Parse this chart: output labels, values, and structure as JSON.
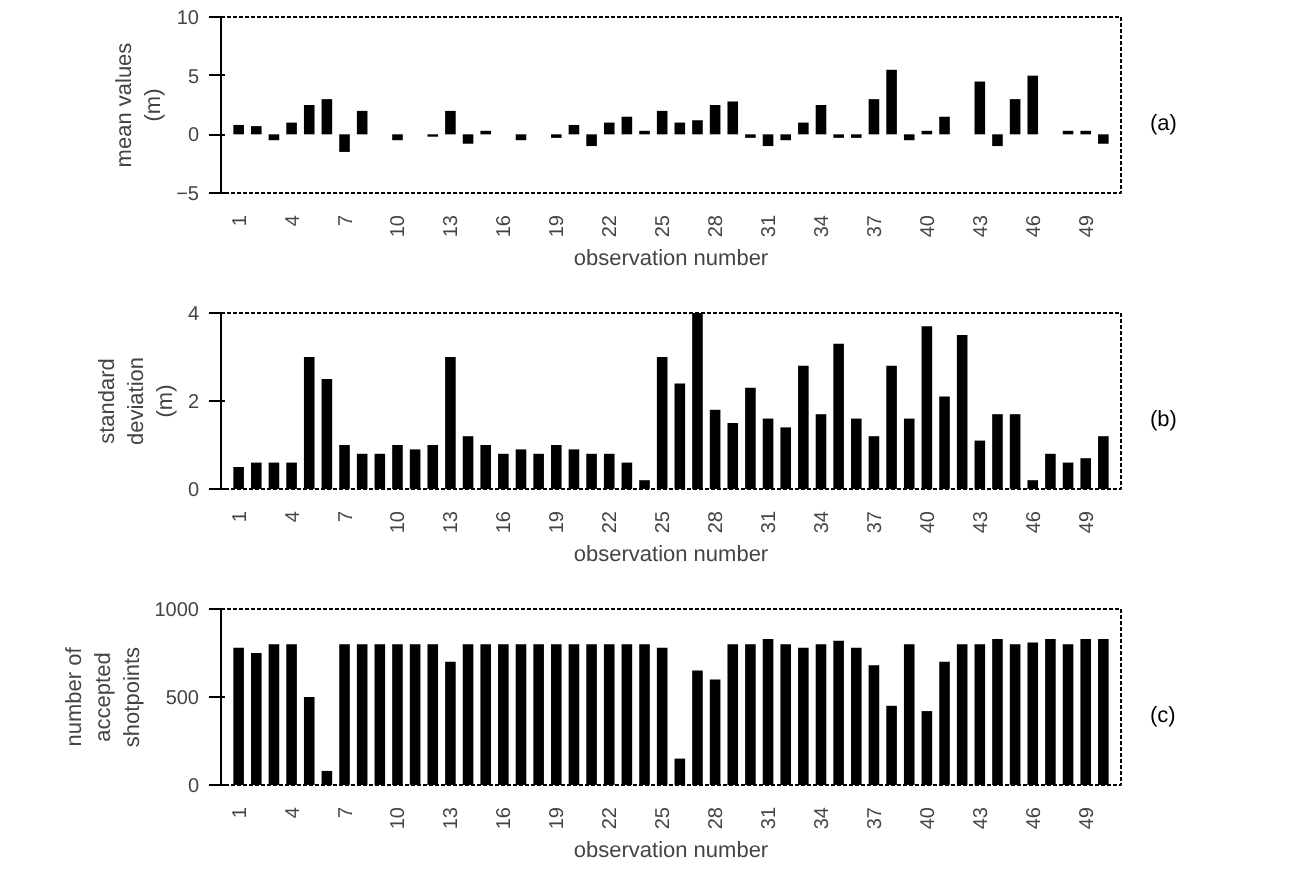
{
  "chart_data": [
    {
      "type": "bar",
      "xlabel": "observation number",
      "ylabel": "mean values\n(m)",
      "annotations": [
        "(a)"
      ],
      "x": [
        1,
        2,
        3,
        4,
        5,
        6,
        7,
        8,
        9,
        10,
        11,
        12,
        13,
        14,
        15,
        16,
        17,
        18,
        19,
        20,
        21,
        22,
        23,
        24,
        25,
        26,
        27,
        28,
        29,
        30,
        31,
        32,
        33,
        34,
        35,
        36,
        37,
        38,
        39,
        40,
        41,
        42,
        43,
        44,
        45,
        46,
        47,
        48,
        49,
        50
      ],
      "series": [
        {
          "color": "#000000",
          "values": [
            0.8,
            0.7,
            -0.5,
            1,
            2.5,
            3,
            -1.5,
            2,
            0,
            -0.5,
            0,
            -0.2,
            2,
            -0.8,
            0.3,
            0,
            -0.5,
            0,
            -0.3,
            0.8,
            -1,
            1,
            1.5,
            0.3,
            2,
            1,
            1.2,
            2.5,
            2.8,
            -0.3,
            -1,
            -0.5,
            1,
            2.5,
            -0.3,
            -0.3,
            3,
            5.5,
            -0.5,
            0.3,
            1.5,
            0,
            4.5,
            -1,
            3,
            5,
            null,
            0.3,
            0.3,
            -0.8
          ]
        }
      ],
      "xlim": [
        0,
        51
      ],
      "xticks": [
        1,
        4,
        7,
        10,
        13,
        16,
        19,
        22,
        25,
        28,
        31,
        34,
        37,
        40,
        43,
        46,
        49
      ],
      "ylim": [
        -5,
        10
      ],
      "yticks": [
        -5,
        0,
        5,
        10
      ],
      "grid": false
    },
    {
      "type": "bar",
      "xlabel": "observation number",
      "ylabel": "standard\ndeviation\n(m)",
      "annotations": [
        "(b)"
      ],
      "x": [
        1,
        2,
        3,
        4,
        5,
        6,
        7,
        8,
        9,
        10,
        11,
        12,
        13,
        14,
        15,
        16,
        17,
        18,
        19,
        20,
        21,
        22,
        23,
        24,
        25,
        26,
        27,
        28,
        29,
        30,
        31,
        32,
        33,
        34,
        35,
        36,
        37,
        38,
        39,
        40,
        41,
        42,
        43,
        44,
        45,
        46,
        47,
        48,
        49,
        50
      ],
      "series": [
        {
          "color": "#000000",
          "values": [
            0.5,
            0.6,
            0.6,
            0.6,
            3,
            2.5,
            1,
            0.8,
            0.8,
            1,
            0.9,
            1,
            3,
            1.2,
            1,
            0.8,
            0.9,
            0.8,
            1,
            0.9,
            0.8,
            0.8,
            0.6,
            0.2,
            3,
            2.4,
            4,
            1.8,
            1.5,
            2.3,
            1.6,
            1.4,
            2.8,
            1.7,
            3.3,
            1.6,
            1.2,
            2.8,
            1.6,
            3.7,
            2.1,
            3.5,
            1.1,
            1.7,
            1.7,
            0.2,
            0.8,
            0.6,
            0.7,
            1.2
          ]
        }
      ],
      "xlim": [
        0,
        51
      ],
      "xticks": [
        1,
        4,
        7,
        10,
        13,
        16,
        19,
        22,
        25,
        28,
        31,
        34,
        37,
        40,
        43,
        46,
        49
      ],
      "ylim": [
        0,
        4
      ],
      "yticks": [
        0,
        2,
        4
      ],
      "grid": false
    },
    {
      "type": "bar",
      "xlabel": "observation number",
      "ylabel": "number of\naccepted\nshotpoints",
      "annotations": [
        "(c)"
      ],
      "x": [
        1,
        2,
        3,
        4,
        5,
        6,
        7,
        8,
        9,
        10,
        11,
        12,
        13,
        14,
        15,
        16,
        17,
        18,
        19,
        20,
        21,
        22,
        23,
        24,
        25,
        26,
        27,
        28,
        29,
        30,
        31,
        32,
        33,
        34,
        35,
        36,
        37,
        38,
        39,
        40,
        41,
        42,
        43,
        44,
        45,
        46,
        47,
        48,
        49,
        50
      ],
      "series": [
        {
          "color": "#000000",
          "values": [
            780,
            750,
            800,
            800,
            500,
            80,
            800,
            800,
            800,
            800,
            800,
            800,
            700,
            800,
            800,
            800,
            800,
            800,
            800,
            800,
            800,
            800,
            800,
            800,
            780,
            150,
            650,
            600,
            800,
            800,
            830,
            800,
            780,
            800,
            820,
            780,
            680,
            450,
            800,
            420,
            700,
            800,
            800,
            830,
            800,
            810,
            830,
            800,
            830,
            830
          ]
        }
      ],
      "xlim": [
        0,
        51
      ],
      "xticks": [
        1,
        4,
        7,
        10,
        13,
        16,
        19,
        22,
        25,
        28,
        31,
        34,
        37,
        40,
        43,
        46,
        49
      ],
      "ylim": [
        0,
        1000
      ],
      "yticks": [
        0,
        500,
        1000
      ],
      "grid": false
    }
  ]
}
